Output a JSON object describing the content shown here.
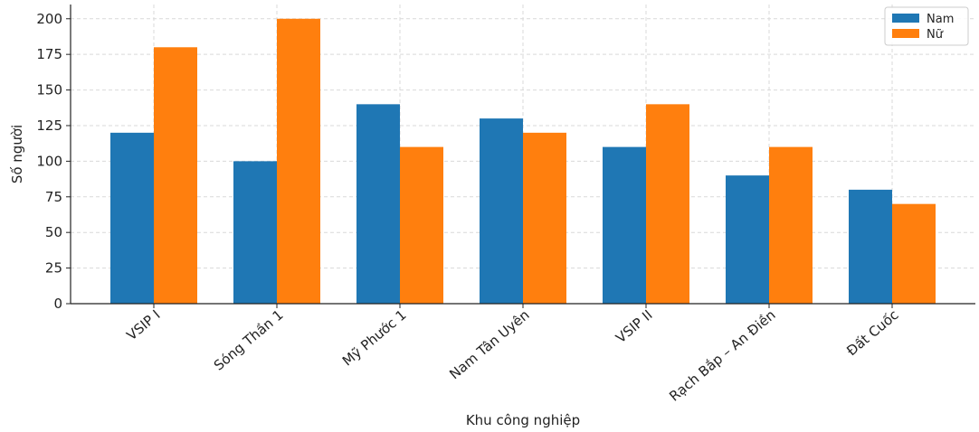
{
  "chart_data": {
    "type": "bar",
    "title": "",
    "xlabel": "Khu công nghiệp",
    "ylabel": "Số người",
    "categories": [
      "VSIP I",
      "Sóng Thần 1",
      "Mỹ Phước 1",
      "Nam Tân Uyên",
      "VSIP II",
      "Rạch Bắp – An Điền",
      "Đất Cuốc"
    ],
    "series": [
      {
        "name": "Nam",
        "color": "#1f77b4",
        "values": [
          120,
          100,
          140,
          130,
          110,
          90,
          80
        ]
      },
      {
        "name": "Nữ",
        "color": "#ff7f0e",
        "values": [
          180,
          200,
          110,
          120,
          140,
          110,
          70
        ]
      }
    ],
    "ylim": [
      0,
      210
    ],
    "yticks": [
      0,
      25,
      50,
      75,
      100,
      125,
      150,
      175,
      200
    ],
    "grid": true,
    "legend_position": "top-right"
  }
}
